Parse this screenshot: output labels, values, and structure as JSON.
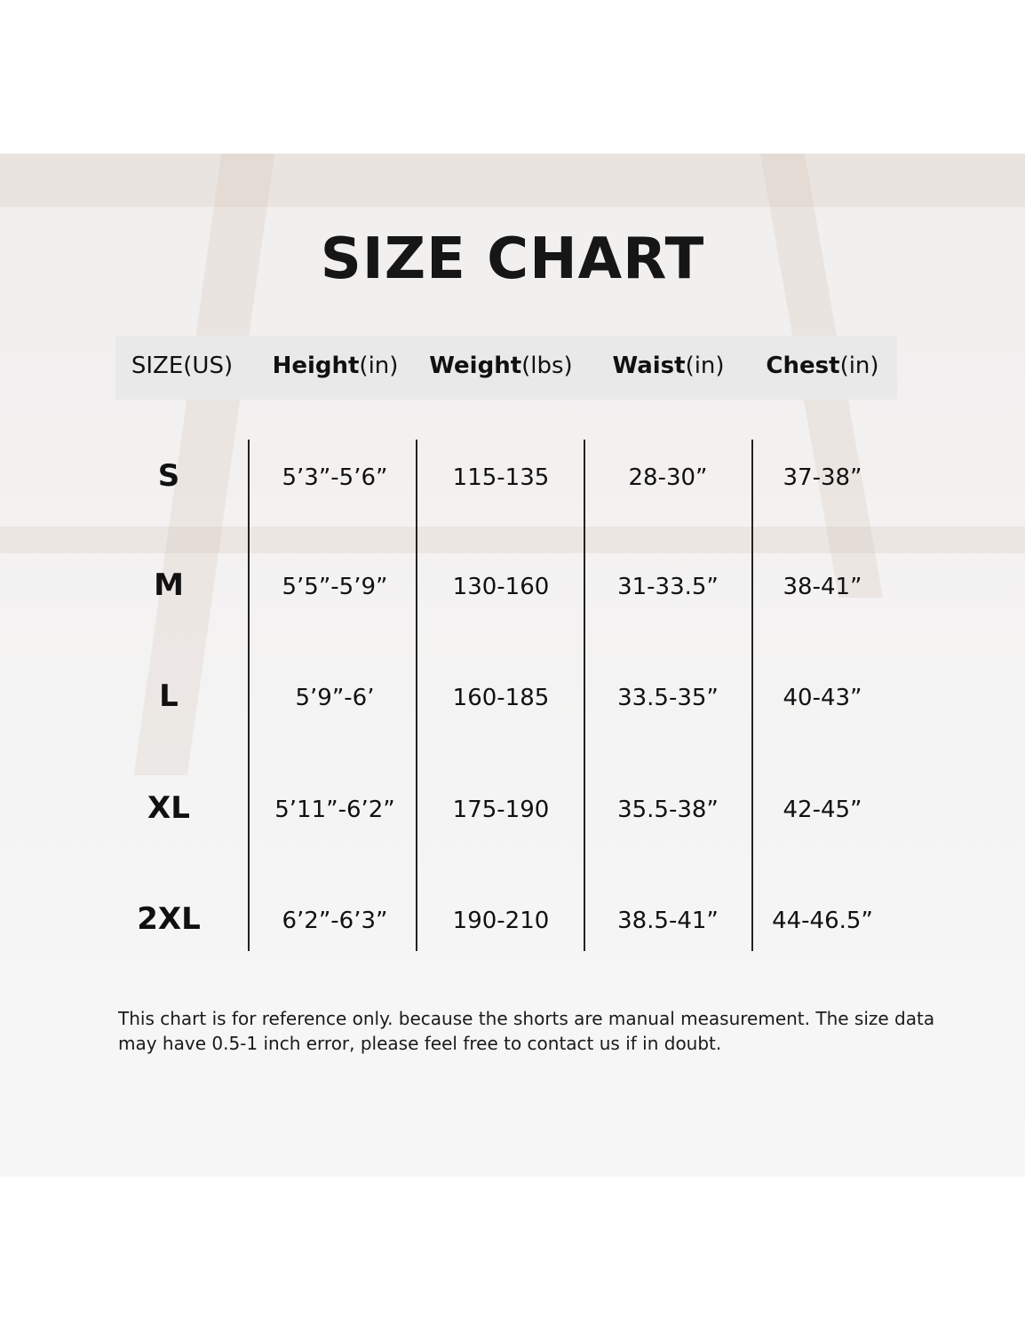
{
  "title": "SIZE CHART",
  "columns": [
    {
      "bold": "",
      "unit": "SIZE(US)"
    },
    {
      "bold": "Height",
      "unit": "(in)"
    },
    {
      "bold": "Weight",
      "unit": "(lbs)"
    },
    {
      "bold": "Waist",
      "unit": "(in)"
    },
    {
      "bold": "Chest",
      "unit": "(in)"
    }
  ],
  "rows": [
    [
      "S",
      "5’3”-5’6”",
      "115-135",
      "28-30”",
      "37-38”"
    ],
    [
      "M",
      "5’5”-5’9”",
      "130-160",
      "31-33.5”",
      "38-41”"
    ],
    [
      "L",
      "5’9”-6’",
      "160-185",
      "33.5-35”",
      "40-43”"
    ],
    [
      "XL",
      "5’11”-6’2”",
      "175-190",
      "35.5-38”",
      "42-45”"
    ],
    [
      "2XL",
      "6’2”-6’3”",
      "190-210",
      "38.5-41”",
      "44-46.5”"
    ]
  ],
  "note": "This chart is for reference only. because the shorts are manual measurement. The size data may have 0.5-1 inch error, please feel free to contact us if in doubt.",
  "colors": {
    "header_band": "#e9e9e9",
    "text": "#111111"
  }
}
